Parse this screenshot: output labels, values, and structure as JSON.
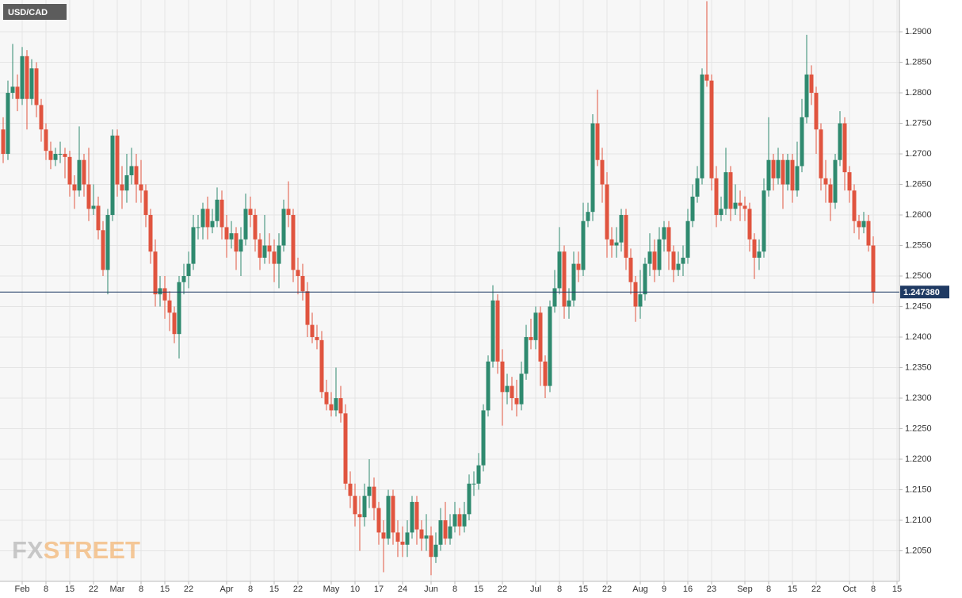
{
  "chart_data": {
    "type": "candlestick",
    "title": "USD/CAD",
    "categories": [
      null,
      null,
      null,
      null,
      "Feb",
      null,
      null,
      null,
      null,
      "8",
      null,
      null,
      null,
      null,
      "15",
      null,
      null,
      null,
      null,
      "22",
      null,
      null,
      null,
      null,
      "Mar",
      null,
      null,
      null,
      null,
      "8",
      null,
      null,
      null,
      null,
      "15",
      null,
      null,
      null,
      null,
      "22",
      null,
      null,
      null,
      null,
      null,
      null,
      null,
      "Apr",
      null,
      null,
      null,
      null,
      "8",
      null,
      null,
      null,
      null,
      "15",
      null,
      null,
      null,
      null,
      "22",
      null,
      null,
      null,
      null,
      null,
      null,
      "May",
      null,
      null,
      null,
      null,
      "10",
      null,
      null,
      null,
      null,
      "17",
      null,
      null,
      null,
      null,
      "24",
      null,
      null,
      null,
      null,
      null,
      "Jun",
      null,
      null,
      null,
      null,
      "8",
      null,
      null,
      null,
      null,
      "15",
      null,
      null,
      null,
      null,
      "22",
      null,
      null,
      null,
      null,
      null,
      null,
      "Jul",
      null,
      null,
      null,
      null,
      "8",
      null,
      null,
      null,
      null,
      "15",
      null,
      null,
      null,
      null,
      "22",
      null,
      null,
      null,
      null,
      null,
      null,
      "Aug",
      null,
      null,
      null,
      null,
      "9",
      null,
      null,
      null,
      null,
      "16",
      null,
      null,
      null,
      null,
      "23",
      null,
      null,
      null,
      null,
      null,
      null,
      "Sep",
      null,
      null,
      null,
      null,
      "8",
      null,
      null,
      null,
      null,
      "15",
      null,
      null,
      null,
      null,
      "22",
      null,
      null,
      null,
      null,
      null,
      null,
      "Oct",
      null,
      null,
      null,
      null,
      "8",
      null,
      null,
      null,
      null,
      "15"
    ],
    "open": [
      1.274,
      1.27,
      1.28,
      1.281,
      1.279,
      1.286,
      1.279,
      1.284,
      1.278,
      1.274,
      1.2705,
      1.269,
      1.27,
      1.27,
      1.2695,
      1.265,
      1.264,
      1.269,
      1.265,
      1.261,
      1.2615,
      1.2575,
      1.251,
      1.26,
      1.273,
      1.265,
      1.264,
      1.2665,
      1.268,
      1.265,
      1.264,
      1.26,
      1.254,
      1.247,
      1.248,
      1.246,
      1.244,
      1.2405,
      1.249,
      1.25,
      1.252,
      1.258,
      1.258,
      1.261,
      1.258,
      1.259,
      1.2625,
      1.258,
      1.256,
      1.257,
      1.254,
      1.256,
      1.261,
      1.26,
      1.256,
      1.253,
      1.255,
      1.254,
      1.252,
      1.255,
      1.261,
      1.26,
      1.251,
      1.25,
      1.2475,
      1.242,
      1.24,
      1.2395,
      1.231,
      1.229,
      1.228,
      1.23,
      1.2275,
      1.216,
      1.214,
      1.211,
      1.2105,
      1.214,
      1.2155,
      1.212,
      1.208,
      1.207,
      1.214,
      1.208,
      1.2065,
      1.206,
      1.208,
      1.213,
      1.2085,
      1.207,
      1.2075,
      1.204,
      1.206,
      1.21,
      1.207,
      1.209,
      1.211,
      1.209,
      1.211,
      1.216,
      1.216,
      1.219,
      1.228,
      1.236,
      1.246,
      1.236,
      1.231,
      1.232,
      1.23,
      1.229,
      1.234,
      1.24,
      1.2395,
      1.244,
      1.236,
      1.232,
      1.245,
      1.248,
      1.254,
      1.245,
      1.246,
      1.252,
      1.251,
      1.259,
      1.2605,
      1.275,
      1.269,
      1.265,
      1.256,
      1.255,
      1.2555,
      1.26,
      1.253,
      1.249,
      1.245,
      1.247,
      1.252,
      1.254,
      1.251,
      1.256,
      1.258,
      1.254,
      1.251,
      1.252,
      1.253,
      1.259,
      1.263,
      1.266,
      1.283,
      1.282,
      1.266,
      1.26,
      1.261,
      1.267,
      1.261,
      1.262,
      1.2615,
      1.261,
      1.256,
      1.253,
      1.254,
      1.264,
      1.269,
      1.266,
      1.269,
      1.265,
      1.269,
      1.264,
      1.268,
      1.276,
      1.283,
      1.28,
      1.274,
      1.266,
      1.265,
      1.262,
      1.269,
      1.275,
      1.267,
      1.264,
      1.259,
      1.258,
      1.259,
      1.255,
      null,
      null,
      null,
      null,
      null
    ],
    "high": [
      1.276,
      1.282,
      1.288,
      1.283,
      1.2875,
      1.287,
      1.2855,
      1.285,
      1.279,
      1.275,
      1.272,
      1.271,
      1.272,
      1.271,
      1.2705,
      1.2665,
      1.2745,
      1.27,
      1.271,
      1.265,
      1.263,
      1.259,
      1.261,
      1.274,
      1.274,
      1.268,
      1.27,
      1.271,
      1.27,
      1.269,
      1.265,
      1.261,
      1.256,
      1.25,
      1.25,
      1.2475,
      1.245,
      1.25,
      1.252,
      1.254,
      1.26,
      1.26,
      1.262,
      1.263,
      1.261,
      1.2645,
      1.264,
      1.26,
      1.259,
      1.258,
      1.258,
      1.2635,
      1.263,
      1.261,
      1.257,
      1.26,
      1.257,
      1.256,
      1.257,
      1.2625,
      1.2655,
      1.261,
      1.253,
      1.252,
      1.249,
      1.244,
      1.242,
      1.241,
      1.233,
      1.231,
      1.235,
      1.232,
      1.229,
      1.218,
      1.216,
      1.214,
      1.216,
      1.22,
      1.217,
      1.213,
      1.21,
      1.215,
      1.215,
      1.21,
      1.209,
      1.21,
      1.214,
      1.214,
      1.21,
      1.211,
      1.209,
      1.208,
      1.212,
      1.213,
      1.211,
      1.213,
      1.212,
      1.213,
      1.2175,
      1.218,
      1.221,
      1.229,
      1.237,
      1.2485,
      1.247,
      1.238,
      1.234,
      1.2335,
      1.233,
      1.236,
      1.242,
      1.243,
      1.245,
      1.245,
      1.237,
      1.246,
      1.251,
      1.258,
      1.255,
      1.248,
      1.254,
      1.254,
      1.262,
      1.262,
      1.2765,
      1.2805,
      1.271,
      1.267,
      1.258,
      1.258,
      1.261,
      1.261,
      1.2545,
      1.25,
      1.251,
      1.253,
      1.257,
      1.256,
      1.258,
      1.259,
      1.259,
      1.255,
      1.254,
      1.255,
      1.261,
      1.265,
      1.268,
      1.284,
      1.295,
      1.283,
      1.268,
      1.263,
      1.271,
      1.268,
      1.265,
      1.264,
      1.263,
      1.262,
      1.257,
      1.256,
      1.266,
      1.276,
      1.27,
      1.271,
      1.27,
      1.27,
      1.27,
      1.272,
      1.279,
      1.2895,
      1.2845,
      1.281,
      1.275,
      1.269,
      1.266,
      1.27,
      1.277,
      1.276,
      1.268,
      1.265,
      1.26,
      1.2605,
      1.26,
      1.2565,
      null,
      null,
      null,
      null,
      null
    ],
    "low": [
      1.2685,
      1.269,
      1.279,
      1.277,
      1.278,
      1.274,
      1.278,
      1.276,
      1.272,
      1.269,
      1.2675,
      1.268,
      1.2685,
      1.266,
      1.263,
      1.261,
      1.263,
      1.263,
      1.259,
      1.26,
      1.256,
      1.25,
      1.247,
      1.259,
      1.263,
      1.261,
      1.262,
      1.265,
      1.262,
      1.262,
      1.258,
      1.252,
      1.245,
      1.245,
      1.243,
      1.241,
      1.239,
      1.2365,
      1.247,
      1.248,
      1.251,
      1.256,
      1.256,
      1.256,
      1.257,
      1.258,
      1.256,
      1.253,
      1.2545,
      1.251,
      1.25,
      1.255,
      1.258,
      1.254,
      1.251,
      1.252,
      1.252,
      1.249,
      1.248,
      1.254,
      1.258,
      1.249,
      1.247,
      1.246,
      1.24,
      1.239,
      1.238,
      1.23,
      1.228,
      1.227,
      1.227,
      1.226,
      1.215,
      1.212,
      1.209,
      1.205,
      1.209,
      1.212,
      1.21,
      1.206,
      1.2015,
      1.206,
      1.206,
      1.204,
      1.204,
      1.204,
      1.207,
      1.206,
      1.205,
      1.205,
      1.201,
      1.203,
      1.205,
      1.206,
      1.206,
      1.208,
      1.2075,
      1.208,
      1.21,
      1.214,
      1.215,
      1.218,
      1.227,
      1.235,
      1.234,
      1.2255,
      1.229,
      1.228,
      1.227,
      1.228,
      1.233,
      1.238,
      1.238,
      1.232,
      1.23,
      1.231,
      1.244,
      1.247,
      1.243,
      1.243,
      1.245,
      1.249,
      1.25,
      1.258,
      1.259,
      1.268,
      1.262,
      1.253,
      1.253,
      1.253,
      1.254,
      1.251,
      1.247,
      1.2425,
      1.243,
      1.246,
      1.25,
      1.249,
      1.25,
      1.254,
      1.251,
      1.249,
      1.25,
      1.25,
      1.252,
      1.258,
      1.262,
      1.265,
      1.281,
      1.264,
      1.258,
      1.259,
      1.26,
      1.259,
      1.26,
      1.259,
      1.259,
      1.254,
      1.2495,
      1.251,
      1.253,
      1.263,
      1.264,
      1.265,
      1.261,
      1.264,
      1.262,
      1.263,
      1.267,
      1.275,
      1.278,
      1.27,
      1.264,
      1.262,
      1.259,
      1.261,
      1.268,
      1.264,
      1.262,
      1.257,
      1.256,
      1.257,
      1.254,
      1.2455,
      null,
      null,
      null,
      null,
      null
    ],
    "close": [
      1.27,
      1.28,
      1.281,
      1.279,
      1.286,
      1.279,
      1.284,
      1.278,
      1.274,
      1.2705,
      1.269,
      1.27,
      1.27,
      1.2695,
      1.265,
      1.264,
      1.269,
      1.265,
      1.261,
      1.2615,
      1.2575,
      1.251,
      1.26,
      1.273,
      1.265,
      1.264,
      1.2665,
      1.268,
      1.265,
      1.264,
      1.26,
      1.254,
      1.247,
      1.248,
      1.246,
      1.244,
      1.2405,
      1.249,
      1.25,
      1.252,
      1.258,
      1.258,
      1.261,
      1.258,
      1.259,
      1.2625,
      1.258,
      1.256,
      1.257,
      1.254,
      1.256,
      1.261,
      1.26,
      1.256,
      1.253,
      1.255,
      1.254,
      1.252,
      1.255,
      1.261,
      1.26,
      1.251,
      1.25,
      1.2475,
      1.242,
      1.24,
      1.2395,
      1.231,
      1.229,
      1.228,
      1.23,
      1.2275,
      1.216,
      1.214,
      1.211,
      1.2105,
      1.214,
      1.2155,
      1.212,
      1.208,
      1.207,
      1.214,
      1.208,
      1.2065,
      1.206,
      1.208,
      1.213,
      1.2085,
      1.207,
      1.2075,
      1.204,
      1.206,
      1.21,
      1.207,
      1.209,
      1.211,
      1.209,
      1.211,
      1.216,
      1.216,
      1.219,
      1.228,
      1.236,
      1.246,
      1.236,
      1.231,
      1.232,
      1.23,
      1.229,
      1.234,
      1.24,
      1.2395,
      1.244,
      1.236,
      1.232,
      1.245,
      1.248,
      1.254,
      1.245,
      1.246,
      1.252,
      1.251,
      1.259,
      1.2605,
      1.275,
      1.269,
      1.265,
      1.256,
      1.255,
      1.2555,
      1.26,
      1.253,
      1.249,
      1.245,
      1.247,
      1.252,
      1.254,
      1.251,
      1.256,
      1.258,
      1.254,
      1.251,
      1.252,
      1.253,
      1.259,
      1.263,
      1.266,
      1.283,
      1.282,
      1.266,
      1.26,
      1.261,
      1.267,
      1.261,
      1.262,
      1.2615,
      1.261,
      1.256,
      1.253,
      1.254,
      1.264,
      1.269,
      1.266,
      1.269,
      1.265,
      1.269,
      1.264,
      1.268,
      1.276,
      1.283,
      1.28,
      1.274,
      1.266,
      1.265,
      1.262,
      1.269,
      1.275,
      1.267,
      1.264,
      1.259,
      1.258,
      1.259,
      1.255,
      1.24738,
      null,
      null,
      null,
      null,
      null
    ],
    "up_color": "#2f8a6f",
    "down_color": "#e0543f",
    "ylim": [
      1.2,
      1.2952
    ],
    "yticks": [
      {
        "value": 1.205,
        "label": "1.2050"
      },
      {
        "value": 1.21,
        "label": "1.2100"
      },
      {
        "value": 1.215,
        "label": "1.2150"
      },
      {
        "value": 1.22,
        "label": "1.2200"
      },
      {
        "value": 1.225,
        "label": "1.2250"
      },
      {
        "value": 1.23,
        "label": "1.2300"
      },
      {
        "value": 1.235,
        "label": "1.2350"
      },
      {
        "value": 1.24,
        "label": "1.2400"
      },
      {
        "value": 1.245,
        "label": "1.2450"
      },
      {
        "value": 1.25,
        "label": "1.2500"
      },
      {
        "value": 1.255,
        "label": "1.2550"
      },
      {
        "value": 1.26,
        "label": "1.2600"
      },
      {
        "value": 1.265,
        "label": "1.2650"
      },
      {
        "value": 1.27,
        "label": "1.2700"
      },
      {
        "value": 1.275,
        "label": "1.2750"
      },
      {
        "value": 1.28,
        "label": "1.2800"
      },
      {
        "value": 1.285,
        "label": "1.2850"
      },
      {
        "value": 1.29,
        "label": "1.2900"
      }
    ],
    "grid": true,
    "last_price": {
      "value": 1.24738,
      "label": "1.247380"
    },
    "last_price_color": "#1f3a63",
    "watermark": [
      "FX",
      "STREET"
    ]
  }
}
